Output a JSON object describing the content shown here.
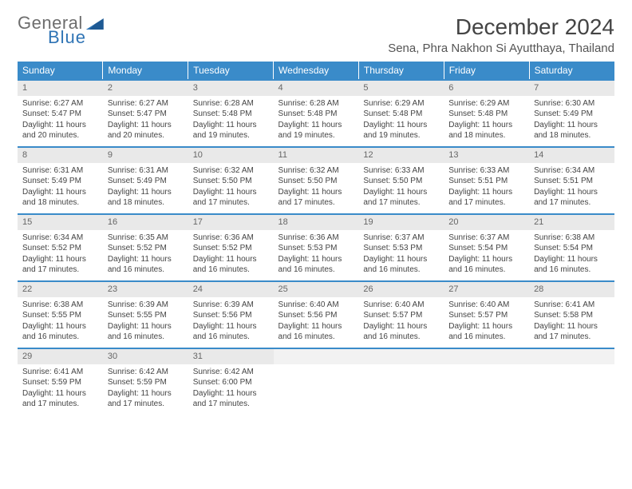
{
  "logo": {
    "line1": "General",
    "line2": "Blue"
  },
  "title": "December 2024",
  "location": "Sena, Phra Nakhon Si Ayutthaya, Thailand",
  "colors": {
    "header_bg": "#3a8bc9",
    "header_text": "#ffffff",
    "daynum_bg": "#e9e9e9",
    "row_border": "#3a8bc9",
    "logo_gray": "#6d6d6d",
    "logo_blue": "#2f74b5"
  },
  "weekdays": [
    "Sunday",
    "Monday",
    "Tuesday",
    "Wednesday",
    "Thursday",
    "Friday",
    "Saturday"
  ],
  "days": [
    {
      "n": 1,
      "sr": "6:27 AM",
      "ss": "5:47 PM",
      "dl": "11 hours and 20 minutes."
    },
    {
      "n": 2,
      "sr": "6:27 AM",
      "ss": "5:47 PM",
      "dl": "11 hours and 20 minutes."
    },
    {
      "n": 3,
      "sr": "6:28 AM",
      "ss": "5:48 PM",
      "dl": "11 hours and 19 minutes."
    },
    {
      "n": 4,
      "sr": "6:28 AM",
      "ss": "5:48 PM",
      "dl": "11 hours and 19 minutes."
    },
    {
      "n": 5,
      "sr": "6:29 AM",
      "ss": "5:48 PM",
      "dl": "11 hours and 19 minutes."
    },
    {
      "n": 6,
      "sr": "6:29 AM",
      "ss": "5:48 PM",
      "dl": "11 hours and 18 minutes."
    },
    {
      "n": 7,
      "sr": "6:30 AM",
      "ss": "5:49 PM",
      "dl": "11 hours and 18 minutes."
    },
    {
      "n": 8,
      "sr": "6:31 AM",
      "ss": "5:49 PM",
      "dl": "11 hours and 18 minutes."
    },
    {
      "n": 9,
      "sr": "6:31 AM",
      "ss": "5:49 PM",
      "dl": "11 hours and 18 minutes."
    },
    {
      "n": 10,
      "sr": "6:32 AM",
      "ss": "5:50 PM",
      "dl": "11 hours and 17 minutes."
    },
    {
      "n": 11,
      "sr": "6:32 AM",
      "ss": "5:50 PM",
      "dl": "11 hours and 17 minutes."
    },
    {
      "n": 12,
      "sr": "6:33 AM",
      "ss": "5:50 PM",
      "dl": "11 hours and 17 minutes."
    },
    {
      "n": 13,
      "sr": "6:33 AM",
      "ss": "5:51 PM",
      "dl": "11 hours and 17 minutes."
    },
    {
      "n": 14,
      "sr": "6:34 AM",
      "ss": "5:51 PM",
      "dl": "11 hours and 17 minutes."
    },
    {
      "n": 15,
      "sr": "6:34 AM",
      "ss": "5:52 PM",
      "dl": "11 hours and 17 minutes."
    },
    {
      "n": 16,
      "sr": "6:35 AM",
      "ss": "5:52 PM",
      "dl": "11 hours and 16 minutes."
    },
    {
      "n": 17,
      "sr": "6:36 AM",
      "ss": "5:52 PM",
      "dl": "11 hours and 16 minutes."
    },
    {
      "n": 18,
      "sr": "6:36 AM",
      "ss": "5:53 PM",
      "dl": "11 hours and 16 minutes."
    },
    {
      "n": 19,
      "sr": "6:37 AM",
      "ss": "5:53 PM",
      "dl": "11 hours and 16 minutes."
    },
    {
      "n": 20,
      "sr": "6:37 AM",
      "ss": "5:54 PM",
      "dl": "11 hours and 16 minutes."
    },
    {
      "n": 21,
      "sr": "6:38 AM",
      "ss": "5:54 PM",
      "dl": "11 hours and 16 minutes."
    },
    {
      "n": 22,
      "sr": "6:38 AM",
      "ss": "5:55 PM",
      "dl": "11 hours and 16 minutes."
    },
    {
      "n": 23,
      "sr": "6:39 AM",
      "ss": "5:55 PM",
      "dl": "11 hours and 16 minutes."
    },
    {
      "n": 24,
      "sr": "6:39 AM",
      "ss": "5:56 PM",
      "dl": "11 hours and 16 minutes."
    },
    {
      "n": 25,
      "sr": "6:40 AM",
      "ss": "5:56 PM",
      "dl": "11 hours and 16 minutes."
    },
    {
      "n": 26,
      "sr": "6:40 AM",
      "ss": "5:57 PM",
      "dl": "11 hours and 16 minutes."
    },
    {
      "n": 27,
      "sr": "6:40 AM",
      "ss": "5:57 PM",
      "dl": "11 hours and 16 minutes."
    },
    {
      "n": 28,
      "sr": "6:41 AM",
      "ss": "5:58 PM",
      "dl": "11 hours and 17 minutes."
    },
    {
      "n": 29,
      "sr": "6:41 AM",
      "ss": "5:59 PM",
      "dl": "11 hours and 17 minutes."
    },
    {
      "n": 30,
      "sr": "6:42 AM",
      "ss": "5:59 PM",
      "dl": "11 hours and 17 minutes."
    },
    {
      "n": 31,
      "sr": "6:42 AM",
      "ss": "6:00 PM",
      "dl": "11 hours and 17 minutes."
    }
  ],
  "labels": {
    "sunrise": "Sunrise:",
    "sunset": "Sunset:",
    "daylight": "Daylight:"
  }
}
